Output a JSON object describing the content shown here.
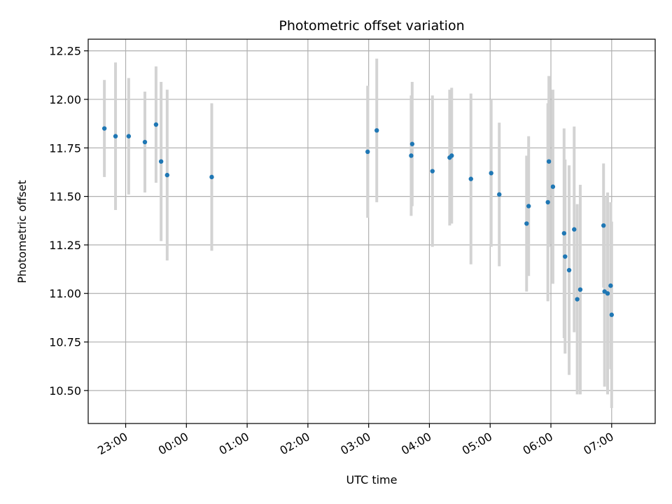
{
  "chart_data": {
    "type": "scatter",
    "title": "Photometric offset variation",
    "xlabel": "UTC time",
    "ylabel": "Photometric offset",
    "grid": true,
    "x_ticks": [
      "23:00",
      "00:00",
      "01:00",
      "02:00",
      "03:00",
      "04:00",
      "05:00",
      "06:00",
      "07:00"
    ],
    "x_tick_hours": [
      23,
      24,
      25,
      26,
      27,
      28,
      29,
      30,
      31
    ],
    "x_tick_rotation": 30,
    "xlim": [
      "22:23",
      "07:43"
    ],
    "ylim": [
      10.33,
      12.31
    ],
    "y_ticks": [
      10.5,
      10.75,
      11.0,
      11.25,
      11.5,
      11.75,
      12.0,
      12.25
    ],
    "y_tick_labels": [
      "10.50",
      "10.75",
      "11.00",
      "11.25",
      "11.50",
      "11.75",
      "12.00",
      "12.25"
    ],
    "colors": {
      "marker": "#1f77b4",
      "errorbar": "#d3d3d3",
      "grid": "#b0b0b0"
    },
    "points": [
      {
        "x": "22:39",
        "y": 11.85,
        "err": 0.25
      },
      {
        "x": "22:50",
        "y": 11.81,
        "err": 0.38
      },
      {
        "x": "23:03",
        "y": 11.81,
        "err": 0.3
      },
      {
        "x": "23:19",
        "y": 11.78,
        "err": 0.26
      },
      {
        "x": "23:30",
        "y": 11.87,
        "err": 0.3
      },
      {
        "x": "23:35",
        "y": 11.68,
        "err": 0.41
      },
      {
        "x": "23:41",
        "y": 11.61,
        "err": 0.44
      },
      {
        "x": "00:25",
        "y": 11.6,
        "err": 0.38
      },
      {
        "x": "02:59",
        "y": 11.73,
        "err": 0.34
      },
      {
        "x": "03:08",
        "y": 11.84,
        "err": 0.37
      },
      {
        "x": "03:42",
        "y": 11.71,
        "err": 0.31
      },
      {
        "x": "03:43",
        "y": 11.77,
        "err": 0.32
      },
      {
        "x": "04:03",
        "y": 11.63,
        "err": 0.39
      },
      {
        "x": "04:20",
        "y": 11.7,
        "err": 0.35
      },
      {
        "x": "04:22",
        "y": 11.71,
        "err": 0.35
      },
      {
        "x": "04:41",
        "y": 11.59,
        "err": 0.44
      },
      {
        "x": "05:01",
        "y": 11.62,
        "err": 0.38
      },
      {
        "x": "05:09",
        "y": 11.51,
        "err": 0.37
      },
      {
        "x": "05:36",
        "y": 11.36,
        "err": 0.35
      },
      {
        "x": "05:38",
        "y": 11.45,
        "err": 0.36
      },
      {
        "x": "05:57",
        "y": 11.47,
        "err": 0.51
      },
      {
        "x": "05:58",
        "y": 11.68,
        "err": 0.44
      },
      {
        "x": "06:02",
        "y": 11.55,
        "err": 0.5
      },
      {
        "x": "06:13",
        "y": 11.31,
        "err": 0.54
      },
      {
        "x": "06:14",
        "y": 11.19,
        "err": 0.5
      },
      {
        "x": "06:18",
        "y": 11.12,
        "err": 0.54
      },
      {
        "x": "06:23",
        "y": 11.33,
        "err": 0.53
      },
      {
        "x": "06:26",
        "y": 10.97,
        "err": 0.49
      },
      {
        "x": "06:29",
        "y": 11.02,
        "err": 0.54
      },
      {
        "x": "06:52",
        "y": 11.35,
        "err": 0.32
      },
      {
        "x": "06:53",
        "y": 11.01,
        "err": 0.49
      },
      {
        "x": "06:56",
        "y": 11.0,
        "err": 0.52
      },
      {
        "x": "06:59",
        "y": 11.04,
        "err": 0.43
      },
      {
        "x": "07:00",
        "y": 10.89,
        "err": 0.48
      }
    ]
  }
}
